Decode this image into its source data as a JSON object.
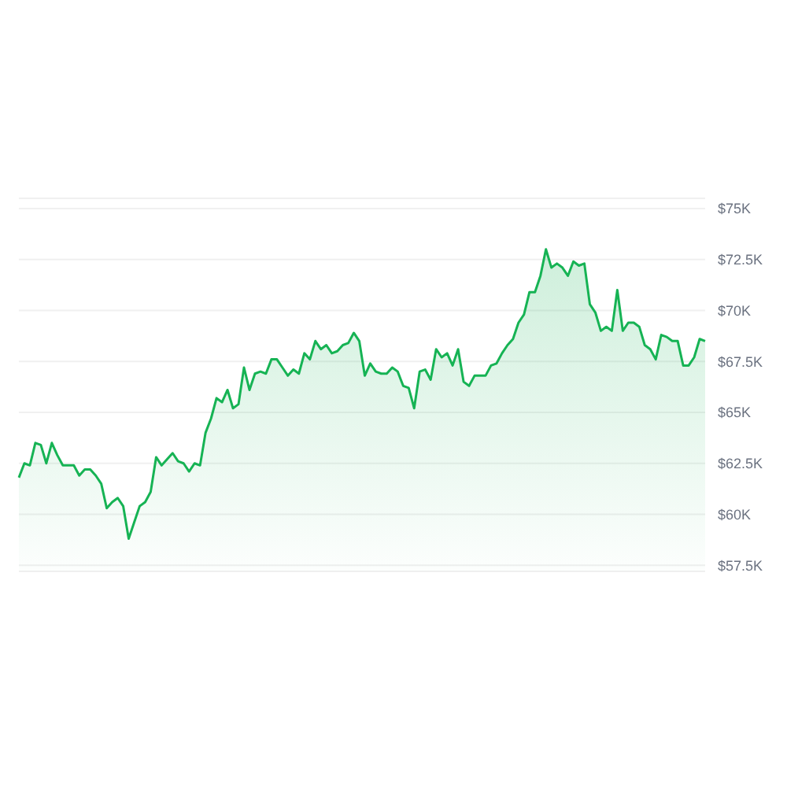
{
  "chart_data": {
    "type": "area",
    "categories": [
      null,
      null,
      null,
      null,
      null,
      null,
      null,
      null,
      null,
      null,
      null,
      null,
      null,
      null,
      null,
      null,
      null,
      null,
      null,
      null,
      null,
      null,
      null,
      null,
      null,
      null,
      null,
      null,
      null,
      null,
      null,
      null,
      null,
      null,
      null,
      null,
      null,
      null,
      null,
      null,
      null,
      null,
      null,
      null,
      null,
      null,
      null,
      null,
      null,
      null,
      null,
      null,
      null,
      null,
      null,
      null,
      null,
      null,
      null,
      null,
      null,
      null,
      null,
      null,
      null,
      null,
      null,
      null,
      null,
      null,
      null,
      null,
      null,
      null,
      null,
      null,
      null,
      null,
      null,
      null,
      null,
      null,
      null,
      null,
      null,
      null,
      null,
      null,
      null,
      null,
      null,
      null,
      null,
      null,
      null,
      null,
      null,
      null,
      null,
      null,
      null,
      null,
      null,
      null,
      null,
      null,
      null,
      null,
      null,
      null,
      null,
      null,
      null,
      null,
      null,
      null,
      null,
      null,
      null,
      null,
      null,
      null,
      null,
      null,
      null,
      null
    ],
    "values": [
      61800,
      62500,
      62400,
      63500,
      63400,
      62500,
      63500,
      62900,
      62400,
      62400,
      62400,
      61900,
      62200,
      62200,
      61900,
      61500,
      60300,
      60600,
      60800,
      60400,
      58800,
      59600,
      60400,
      60600,
      61100,
      62800,
      62400,
      62700,
      63000,
      62600,
      62500,
      62100,
      62500,
      62400,
      64000,
      64700,
      65700,
      65500,
      66100,
      65200,
      65400,
      67200,
      66100,
      66900,
      67000,
      66900,
      67600,
      67600,
      67200,
      66800,
      67100,
      66900,
      67900,
      67600,
      68500,
      68100,
      68300,
      67900,
      68000,
      68300,
      68400,
      68900,
      68500,
      66800,
      67400,
      67000,
      66900,
      66900,
      67200,
      67000,
      66300,
      66200,
      65200,
      67000,
      67100,
      66600,
      68100,
      67700,
      67900,
      67300,
      68100,
      66500,
      66300,
      66800,
      66800,
      66800,
      67300,
      67400,
      67900,
      68300,
      68600,
      69400,
      69800,
      70900,
      70900,
      71700,
      73000,
      72100,
      72300,
      72100,
      71700,
      72400,
      72200,
      72300,
      70300,
      69900,
      69000,
      69200,
      69000,
      71000,
      69000,
      69400,
      69400,
      69200,
      68300,
      68100,
      67600,
      68800,
      68700,
      68500,
      68500,
      67300,
      67300,
      67700,
      68600,
      68500
    ],
    "color": "#16b354",
    "ylim": [
      57200,
      75500
    ],
    "yticks": [
      {
        "value": 57500,
        "label": "$57.5K"
      },
      {
        "value": 60000,
        "label": "$60K"
      },
      {
        "value": 62500,
        "label": "$62.5K"
      },
      {
        "value": 65000,
        "label": "$65K"
      },
      {
        "value": 67500,
        "label": "$67.5K"
      },
      {
        "value": 70000,
        "label": "$70K"
      },
      {
        "value": 72500,
        "label": "$72.5K"
      },
      {
        "value": 75000,
        "label": "$75K"
      }
    ],
    "grid": "y"
  }
}
